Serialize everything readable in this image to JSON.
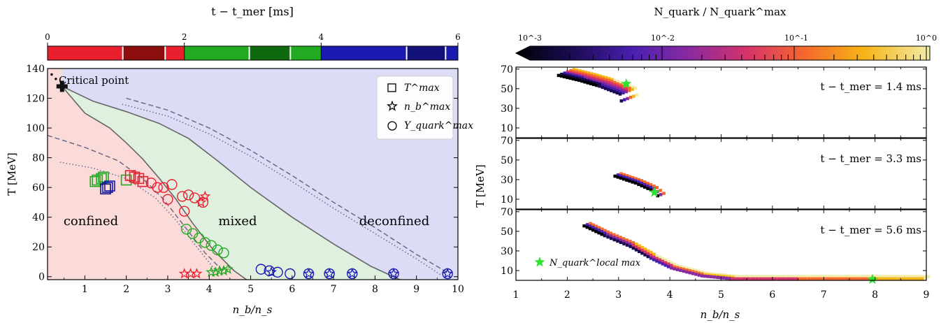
{
  "left": {
    "colorbar": {
      "label": "t − t_mer [ms]",
      "range": [
        0,
        6
      ],
      "ticks": [
        "0",
        "2",
        "4",
        "6"
      ],
      "segments": [
        {
          "from": 0.0,
          "to": 1.1,
          "color": "#e8202e"
        },
        {
          "from": 1.1,
          "to": 1.72,
          "color": "#8b0d0d"
        },
        {
          "from": 1.72,
          "to": 2.0,
          "color": "#e8202e"
        },
        {
          "from": 2.0,
          "to": 2.95,
          "color": "#22aa22"
        },
        {
          "from": 2.95,
          "to": 3.55,
          "color": "#0e6a0e"
        },
        {
          "from": 3.55,
          "to": 4.0,
          "color": "#22aa22"
        },
        {
          "from": 4.0,
          "to": 5.25,
          "color": "#1a1ab0"
        },
        {
          "from": 5.25,
          "to": 5.82,
          "color": "#12127a"
        },
        {
          "from": 5.82,
          "to": 6.0,
          "color": "#1a1ab0"
        }
      ],
      "dividers": [
        1.1,
        1.72,
        2.95,
        3.55,
        5.25,
        5.82
      ]
    },
    "chart_data": {
      "type": "scatter",
      "xlabel": "n_b/n_s",
      "ylabel": "T [MeV]",
      "xlim": [
        0.1,
        10.0
      ],
      "ylim": [
        -2,
        140
      ],
      "xticks": [
        1,
        2,
        3,
        4,
        5,
        6,
        7,
        8,
        9,
        10
      ],
      "yticks": [
        0,
        20,
        40,
        60,
        80,
        100,
        120,
        140
      ],
      "critical_point": {
        "x": 0.45,
        "y": 128,
        "label": "Critical point"
      },
      "region_labels": [
        "confined",
        "mixed",
        "deconfined"
      ],
      "phase_colors": {
        "confined": "#fbdada",
        "mixed": "#dff0df",
        "deconfined": "#dcdcf7"
      },
      "phase_boundaries": [
        {
          "name": "confined-edge",
          "points": [
            [
              0.45,
              128
            ],
            [
              1.0,
              110
            ],
            [
              1.6,
              100
            ],
            [
              2.0,
              90
            ],
            [
              2.4,
              79
            ],
            [
              2.8,
              66
            ],
            [
              3.2,
              52
            ],
            [
              3.6,
              36
            ],
            [
              4.1,
              18
            ],
            [
              4.6,
              4
            ],
            [
              4.9,
              -2
            ]
          ]
        },
        {
          "name": "deconfined-edge",
          "points": [
            [
              0.45,
              128
            ],
            [
              1.2,
              118
            ],
            [
              2.0,
              111
            ],
            [
              2.8,
              103
            ],
            [
              3.5,
              93
            ],
            [
              4.2,
              78
            ],
            [
              5.0,
              60
            ],
            [
              6.0,
              40
            ],
            [
              7.0,
              22
            ],
            [
              7.9,
              7
            ],
            [
              8.6,
              -2
            ]
          ]
        }
      ],
      "dashed_lines": [
        {
          "style": "dashed",
          "points": [
            [
              0.1,
              95
            ],
            [
              1.0,
              87
            ],
            [
              1.8,
              78
            ],
            [
              2.4,
              66
            ],
            [
              2.9,
              52
            ],
            [
              3.4,
              34
            ],
            [
              3.9,
              16
            ],
            [
              4.4,
              2
            ]
          ]
        },
        {
          "style": "dotted",
          "points": [
            [
              0.4,
              77
            ],
            [
              1.2,
              73
            ],
            [
              2.0,
              66
            ],
            [
              2.7,
              53
            ],
            [
              3.2,
              38
            ],
            [
              3.7,
              20
            ],
            [
              4.1,
              6
            ],
            [
              4.3,
              1
            ]
          ]
        },
        {
          "style": "dashed",
          "points": [
            [
              2.0,
              120
            ],
            [
              3.0,
              112
            ],
            [
              4.0,
              100
            ],
            [
              5.0,
              85
            ],
            [
              6.0,
              68
            ],
            [
              7.0,
              50
            ],
            [
              8.0,
              33
            ],
            [
              9.0,
              15
            ],
            [
              9.8,
              2
            ]
          ]
        },
        {
          "style": "dotted",
          "points": [
            [
              1.9,
              116
            ],
            [
              3.0,
              108
            ],
            [
              4.0,
              96
            ],
            [
              5.0,
              81
            ],
            [
              6.0,
              64
            ],
            [
              7.0,
              46
            ],
            [
              8.0,
              29
            ],
            [
              9.0,
              12
            ],
            [
              9.6,
              1
            ]
          ]
        }
      ],
      "series": [
        {
          "name": "T^max",
          "marker": "square",
          "points": [
            [
              1.25,
              64,
              "#22aa22"
            ],
            [
              1.3,
              65,
              "#22aa22"
            ],
            [
              1.4,
              66,
              "#22aa22"
            ],
            [
              1.45,
              67,
              "#22aa22"
            ],
            [
              1.55,
              60,
              "#1a1ab0"
            ],
            [
              1.6,
              61,
              "#1a1ab0"
            ],
            [
              1.5,
              59,
              "#12127a"
            ],
            [
              2.0,
              65,
              "#22aa22"
            ],
            [
              2.1,
              68,
              "#e8202e"
            ],
            [
              2.2,
              67,
              "#e8202e"
            ],
            [
              2.3,
              66,
              "#e8202e"
            ],
            [
              2.4,
              64,
              "#e8202e"
            ]
          ]
        },
        {
          "name": "n_b^max",
          "marker": "star",
          "points": [
            [
              3.4,
              2,
              "#e8202e"
            ],
            [
              3.55,
              2,
              "#e8202e"
            ],
            [
              3.7,
              2,
              "#e8202e"
            ],
            [
              3.9,
              54,
              "#e8202e"
            ],
            [
              3.8,
              50,
              "#e8202e"
            ],
            [
              4.05,
              3,
              "#22aa22"
            ],
            [
              4.15,
              3,
              "#22aa22"
            ],
            [
              4.25,
              4,
              "#22aa22"
            ],
            [
              4.35,
              4,
              "#22aa22"
            ],
            [
              4.45,
              5,
              "#22aa22"
            ],
            [
              5.5,
              3,
              "#1a1ab0"
            ],
            [
              6.4,
              2,
              "#1a1ab0"
            ],
            [
              6.9,
              2,
              "#1a1ab0"
            ],
            [
              7.45,
              2,
              "#1a1ab0"
            ],
            [
              8.45,
              2,
              "#1a1ab0"
            ],
            [
              9.75,
              2,
              "#1a1ab0"
            ]
          ]
        },
        {
          "name": "Y_quark^max",
          "marker": "circle",
          "points": [
            [
              2.6,
              63,
              "#e8202e"
            ],
            [
              2.75,
              60,
              "#e8202e"
            ],
            [
              2.9,
              60,
              "#e8202e"
            ],
            [
              3.1,
              62,
              "#e8202e"
            ],
            [
              3.35,
              54,
              "#e8202e"
            ],
            [
              3.5,
              55,
              "#e8202e"
            ],
            [
              3.65,
              53,
              "#e8202e"
            ],
            [
              3.85,
              50,
              "#e8202e"
            ],
            [
              3.0,
              52,
              "#e8202e"
            ],
            [
              3.4,
              44,
              "#e8202e"
            ],
            [
              3.45,
              32,
              "#22aa22"
            ],
            [
              3.6,
              29,
              "#22aa22"
            ],
            [
              3.75,
              26,
              "#22aa22"
            ],
            [
              3.9,
              23,
              "#22aa22"
            ],
            [
              4.05,
              21,
              "#22aa22"
            ],
            [
              4.2,
              18,
              "#22aa22"
            ],
            [
              4.35,
              16,
              "#22aa22"
            ],
            [
              5.25,
              5,
              "#1a1ab0"
            ],
            [
              5.45,
              4,
              "#1a1ab0"
            ],
            [
              5.65,
              3,
              "#1a1ab0"
            ],
            [
              5.95,
              2,
              "#1a1ab0"
            ],
            [
              6.4,
              2,
              "#1a1ab0"
            ],
            [
              6.9,
              2,
              "#1a1ab0"
            ],
            [
              7.45,
              2,
              "#1a1ab0"
            ],
            [
              8.45,
              2,
              "#1a1ab0"
            ],
            [
              9.75,
              2,
              "#1a1ab0"
            ]
          ]
        }
      ]
    }
  },
  "right": {
    "colorbar": {
      "label": "N_quark / N_quark^max",
      "scale": "log",
      "range": [
        0.001,
        1
      ],
      "tick_labels": [
        "10^-3",
        "10^-2",
        "10^-1",
        "10^0"
      ]
    },
    "chart_data": {
      "type": "heatmap",
      "xlabel": "n_b/n_s",
      "ylabel": "T [MeV]",
      "xlim": [
        1,
        9
      ],
      "ylim": [
        0,
        72
      ],
      "xticks": [
        1,
        2,
        3,
        4,
        5,
        6,
        7,
        8,
        9
      ],
      "yticks": [
        10,
        30,
        50,
        70
      ],
      "legend_marker_label": "N_quark^local max",
      "panels": [
        {
          "label": "t − t_mer = 1.4 ms",
          "band": [
            [
              1.8,
              63
            ],
            [
              2.2,
              58
            ],
            [
              2.6,
              52
            ],
            [
              3.0,
              44
            ],
            [
              3.05,
              30
            ]
          ],
          "width": 0.35,
          "star": [
            3.15,
            55
          ],
          "tail_value": 0.08
        },
        {
          "label": "t − t_mer = 3.3 ms",
          "band": [
            [
              2.9,
              33
            ],
            [
              3.3,
              26
            ],
            [
              3.6,
              19
            ],
            [
              3.8,
              10
            ]
          ],
          "width": 0.15,
          "star": [
            3.7,
            17
          ],
          "tail_value": 0.02
        },
        {
          "label": "t − t_mer = 5.6 ms",
          "band": [
            [
              2.3,
              55
            ],
            [
              2.7,
              45
            ],
            [
              3.2,
              34
            ],
            [
              3.6,
              22
            ],
            [
              4.0,
              12
            ],
            [
              4.6,
              4
            ],
            [
              5.2,
              1
            ],
            [
              6.5,
              1
            ],
            [
              8.0,
              1
            ],
            [
              8.95,
              1
            ]
          ],
          "width": 0.15,
          "star": [
            7.95,
            1
          ],
          "tail_value": 0.3
        }
      ]
    }
  }
}
